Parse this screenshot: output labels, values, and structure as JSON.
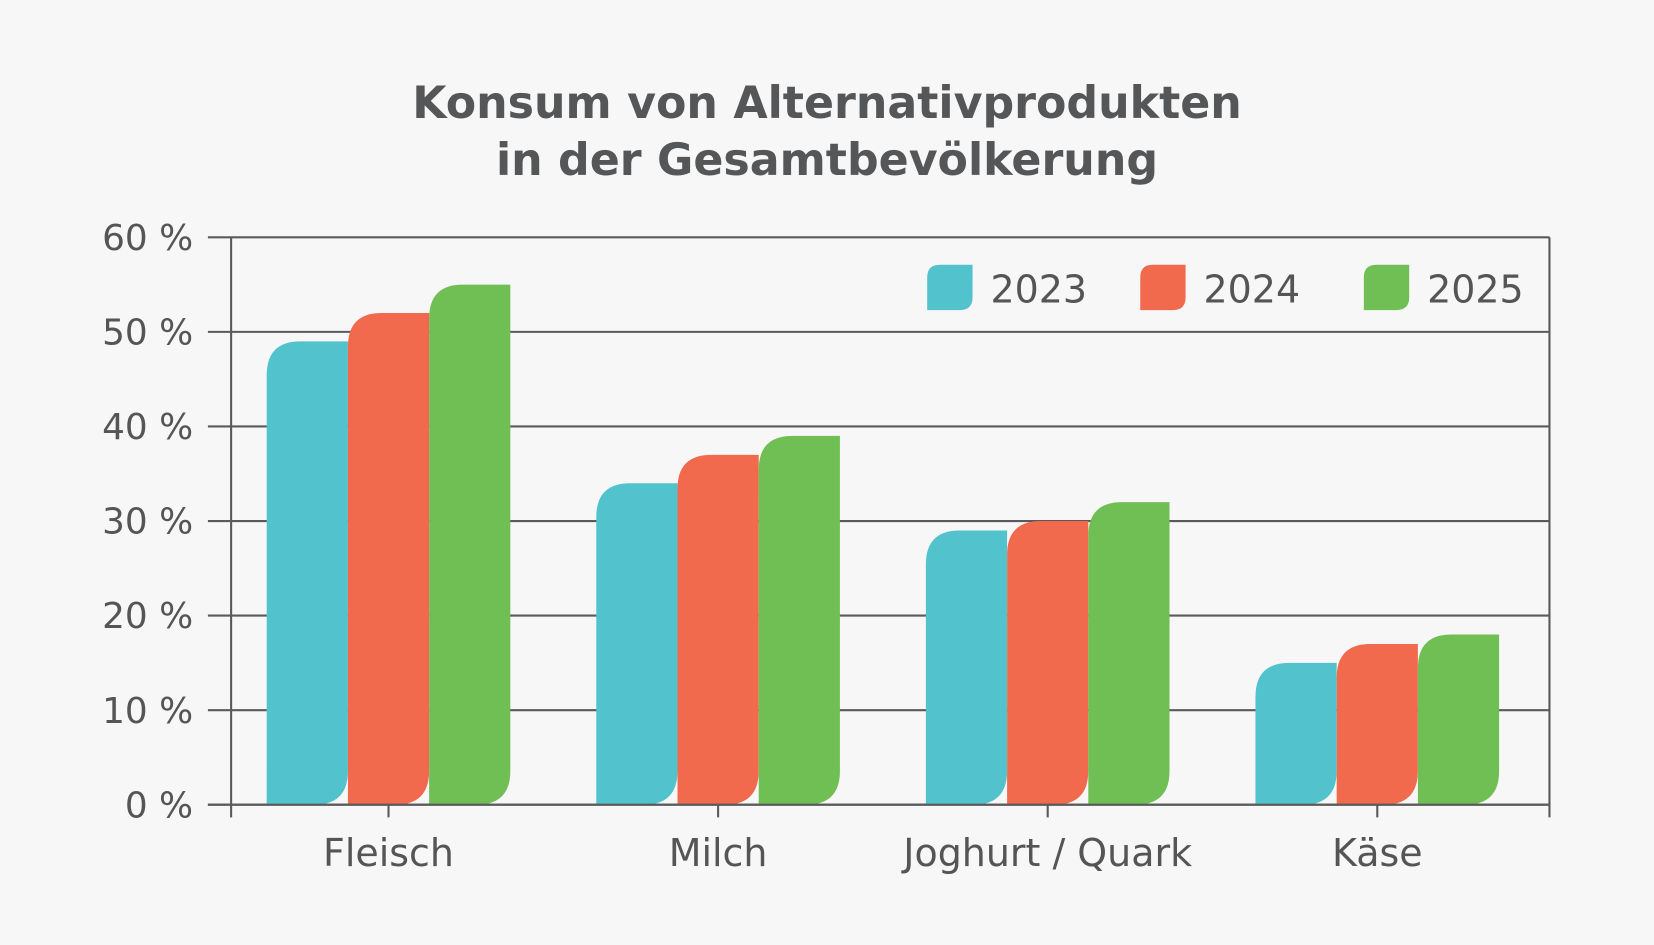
{
  "chart_data": {
    "type": "bar",
    "title_lines": [
      "Konsum von Alternativprodukten",
      "in der Gesamtbevölkerung"
    ],
    "xlabel": "",
    "ylabel": "",
    "categories": [
      "Fleisch",
      "Milch",
      "Joghurt / Quark",
      "Käse"
    ],
    "series": [
      {
        "name": "2023",
        "color": "#52c3cc",
        "values": [
          49,
          34,
          29,
          15
        ]
      },
      {
        "name": "2024",
        "color": "#f26a4e",
        "values": [
          52,
          37,
          30,
          17
        ]
      },
      {
        "name": "2025",
        "color": "#70bf54",
        "values": [
          55,
          39,
          32,
          18
        ]
      }
    ],
    "ylim": [
      0,
      60
    ],
    "y_ticks": [
      0,
      10,
      20,
      30,
      40,
      50,
      60
    ],
    "y_tick_labels": [
      "0 %",
      "10 %",
      "20 %",
      "30 %",
      "40 %",
      "50 %",
      "60 %"
    ],
    "grid": true,
    "legend_position": "top-right",
    "background": "#f8f7f7",
    "axis_color": "#5a5a5a"
  }
}
